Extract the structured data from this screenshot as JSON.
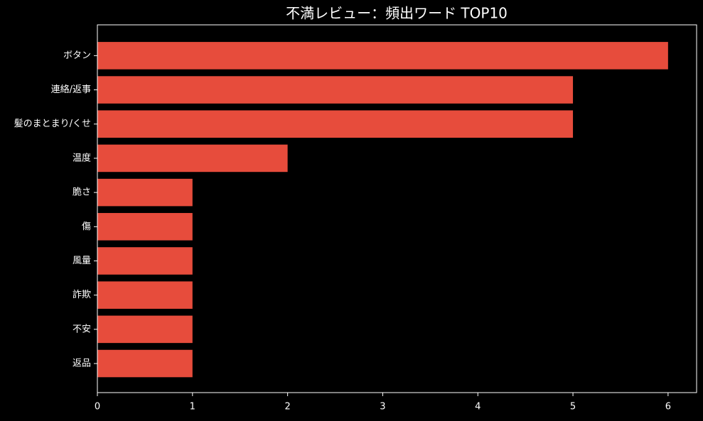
{
  "chart_data": {
    "type": "barh",
    "title": "不満レビュー：頻出ワード TOP10",
    "categories": [
      "ボタン",
      "連絡/返事",
      "髪のまとまり/くせ",
      "温度",
      "脆さ",
      "傷",
      "風量",
      "詐欺",
      "不安",
      "返品"
    ],
    "values": [
      6,
      5,
      5,
      2,
      1,
      1,
      1,
      1,
      1,
      1
    ],
    "color": "#e74c3c",
    "xlim": [
      0,
      6.3
    ],
    "xticks": [
      0,
      1,
      2,
      3,
      4,
      5,
      6
    ],
    "grid": false
  }
}
